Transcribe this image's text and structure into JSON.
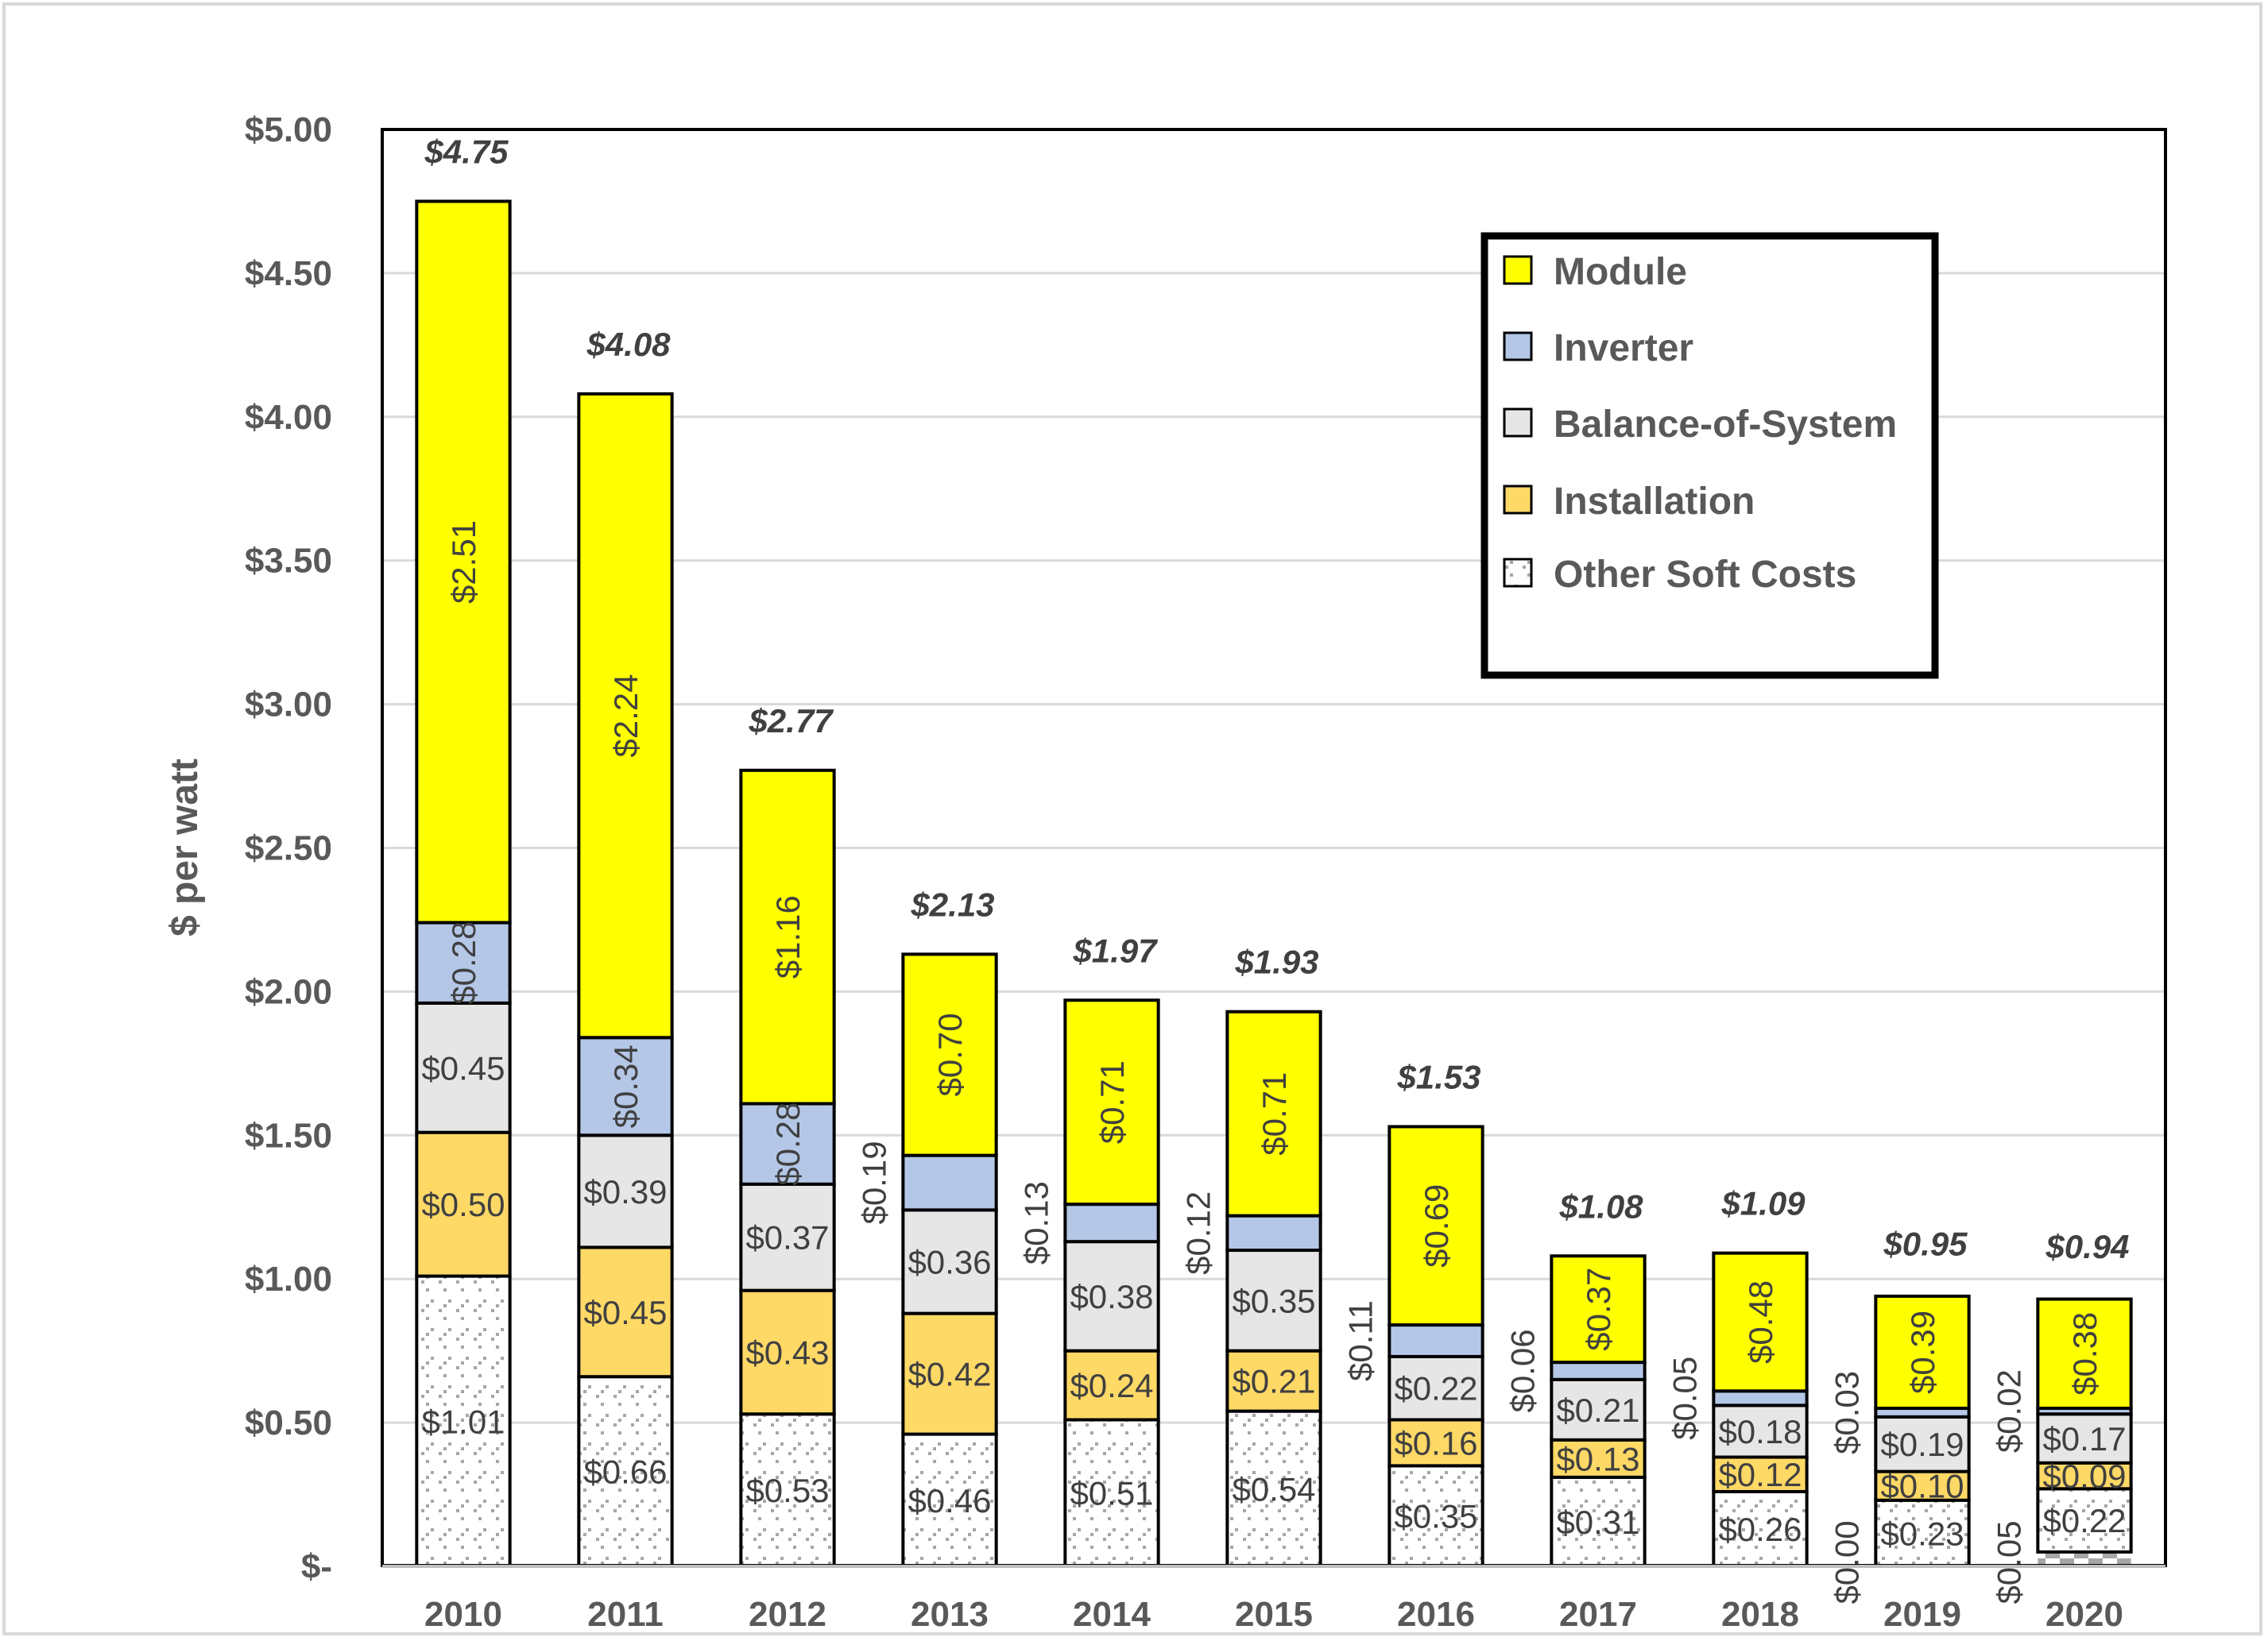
{
  "chart_data": {
    "type": "bar",
    "stacked": true,
    "title": "",
    "xlabel": "",
    "ylabel": "$ per watt",
    "ylim": [
      0,
      5
    ],
    "yticks": [
      0,
      0.5,
      1.0,
      1.5,
      2.0,
      2.5,
      3.0,
      3.5,
      4.0,
      4.5,
      5.0
    ],
    "ytick_labels": [
      "$-",
      "$0.50",
      "$1.00",
      "$1.50",
      "$2.00",
      "$2.50",
      "$3.00",
      "$3.50",
      "$4.00",
      "$4.50",
      "$5.00"
    ],
    "grid": true,
    "legend_position": "top-right",
    "categories": [
      "2010",
      "2011",
      "2012",
      "2013",
      "2014",
      "2015",
      "2016",
      "2017",
      "2018",
      "2019",
      "2020"
    ],
    "series": [
      {
        "name": "",
        "in_legend": false,
        "pattern": "checker",
        "color": "#a6a6a6",
        "values": [
          null,
          null,
          null,
          null,
          null,
          null,
          null,
          null,
          null,
          0.0,
          0.05
        ],
        "labels": [
          null,
          null,
          null,
          null,
          null,
          null,
          null,
          null,
          null,
          "$0.00",
          "$0.05"
        ],
        "label_position": "outside-left"
      },
      {
        "name": "Other Soft Costs",
        "in_legend": true,
        "pattern": "hatch",
        "color": "#ffffff",
        "values": [
          1.01,
          0.66,
          0.53,
          0.46,
          0.51,
          0.54,
          0.35,
          0.31,
          0.26,
          0.23,
          0.22
        ],
        "labels": [
          "$1.01",
          "$0.66",
          "$0.53",
          "$0.46",
          "$0.51",
          "$0.54",
          "$0.35",
          "$0.31",
          "$0.26",
          "$0.23",
          "$0.22"
        ],
        "label_position": "inside"
      },
      {
        "name": "Installation",
        "in_legend": true,
        "color": "#ffd966",
        "values": [
          0.5,
          0.45,
          0.43,
          0.42,
          0.24,
          0.21,
          0.16,
          0.13,
          0.12,
          0.1,
          0.09
        ],
        "labels": [
          "$0.50",
          "$0.45",
          "$0.43",
          "$0.42",
          "$0.24",
          "$0.21",
          "$0.16",
          "$0.13",
          "$0.12",
          "$0.10",
          "$0.09"
        ],
        "label_position": "inside"
      },
      {
        "name": "Balance-of-System",
        "in_legend": true,
        "color": "#e7e6e6",
        "values": [
          0.45,
          0.39,
          0.37,
          0.36,
          0.38,
          0.35,
          0.22,
          0.21,
          0.18,
          0.19,
          0.17
        ],
        "labels": [
          "$0.45",
          "$0.39",
          "$0.37",
          "$0.36",
          "$0.38",
          "$0.35",
          "$0.22",
          "$0.21",
          "$0.18",
          "$0.19",
          "$0.17"
        ],
        "label_position": "inside"
      },
      {
        "name": "Inverter",
        "in_legend": true,
        "color": "#b4c7e7",
        "values": [
          0.28,
          0.34,
          0.28,
          0.19,
          0.13,
          0.12,
          0.11,
          0.06,
          0.05,
          0.03,
          0.02
        ],
        "labels": [
          "$0.28",
          "$0.34",
          "$0.28",
          "$0.19",
          "$0.13",
          "$0.12",
          "$0.11",
          "$0.06",
          "$0.05",
          "$0.03",
          "$0.02"
        ],
        "label_position": [
          "inside-rotated",
          "inside-rotated",
          "inside-rotated",
          "outside-left",
          "outside-left",
          "outside-left",
          "outside-left",
          "outside-left",
          "outside-left",
          "outside-left",
          "outside-left"
        ]
      },
      {
        "name": "Module",
        "in_legend": true,
        "color": "#ffff00",
        "values": [
          2.51,
          2.24,
          1.16,
          0.7,
          0.71,
          0.71,
          0.69,
          0.37,
          0.48,
          0.39,
          0.38
        ],
        "labels": [
          "$2.51",
          "$2.24",
          "$1.16",
          "$0.70",
          "$0.71",
          "$0.71",
          "$0.69",
          "$0.37",
          "$0.48",
          "$0.39",
          "$0.38"
        ],
        "label_position": "inside-rotated"
      }
    ],
    "totals": [
      4.75,
      4.08,
      2.77,
      2.13,
      1.97,
      1.93,
      1.53,
      1.08,
      1.09,
      0.95,
      0.94
    ],
    "total_labels": [
      "$4.75",
      "$4.08",
      "$2.77",
      "$2.13",
      "$1.97",
      "$1.93",
      "$1.53",
      "$1.08",
      "$1.09",
      "$0.95",
      "$0.94"
    ],
    "legend": [
      "Module",
      "Inverter",
      "Balance-of-System",
      "Installation",
      "Other Soft Costs"
    ]
  }
}
